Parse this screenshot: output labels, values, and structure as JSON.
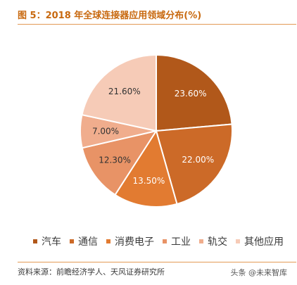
{
  "figure": {
    "title": "图 5：2018 年全球连接器应用领域分布(%)",
    "source": "资料来源：前瞻经济学人、天风证券研究所",
    "watermark": "头条 @未来智库"
  },
  "chart_data": {
    "type": "pie",
    "title": "图 5：2018 年全球连接器应用领域分布(%)",
    "slices": [
      {
        "name": "汽车",
        "value": 23.6,
        "label": "23.60%",
        "color": "#B1581A",
        "label_color": "#ffffff"
      },
      {
        "name": "通信",
        "value": 22.0,
        "label": "22.00%",
        "color": "#CC6A28",
        "label_color": "#ffffff"
      },
      {
        "name": "消费电子",
        "value": 13.5,
        "label": "13.50%",
        "color": "#E27B31",
        "label_color": "#ffffff"
      },
      {
        "name": "工业",
        "value": 12.3,
        "label": "12.30%",
        "color": "#E89366",
        "label_color": "#333333"
      },
      {
        "name": "轨交",
        "value": 7.0,
        "label": "7.00%",
        "color": "#F0AD8D",
        "label_color": "#333333"
      },
      {
        "name": "其他应用",
        "value": 21.6,
        "label": "21.60%",
        "color": "#F6CBB7",
        "label_color": "#333333"
      }
    ],
    "legend_position": "bottom",
    "start_angle": "12 o'clock",
    "direction": "clockwise"
  }
}
